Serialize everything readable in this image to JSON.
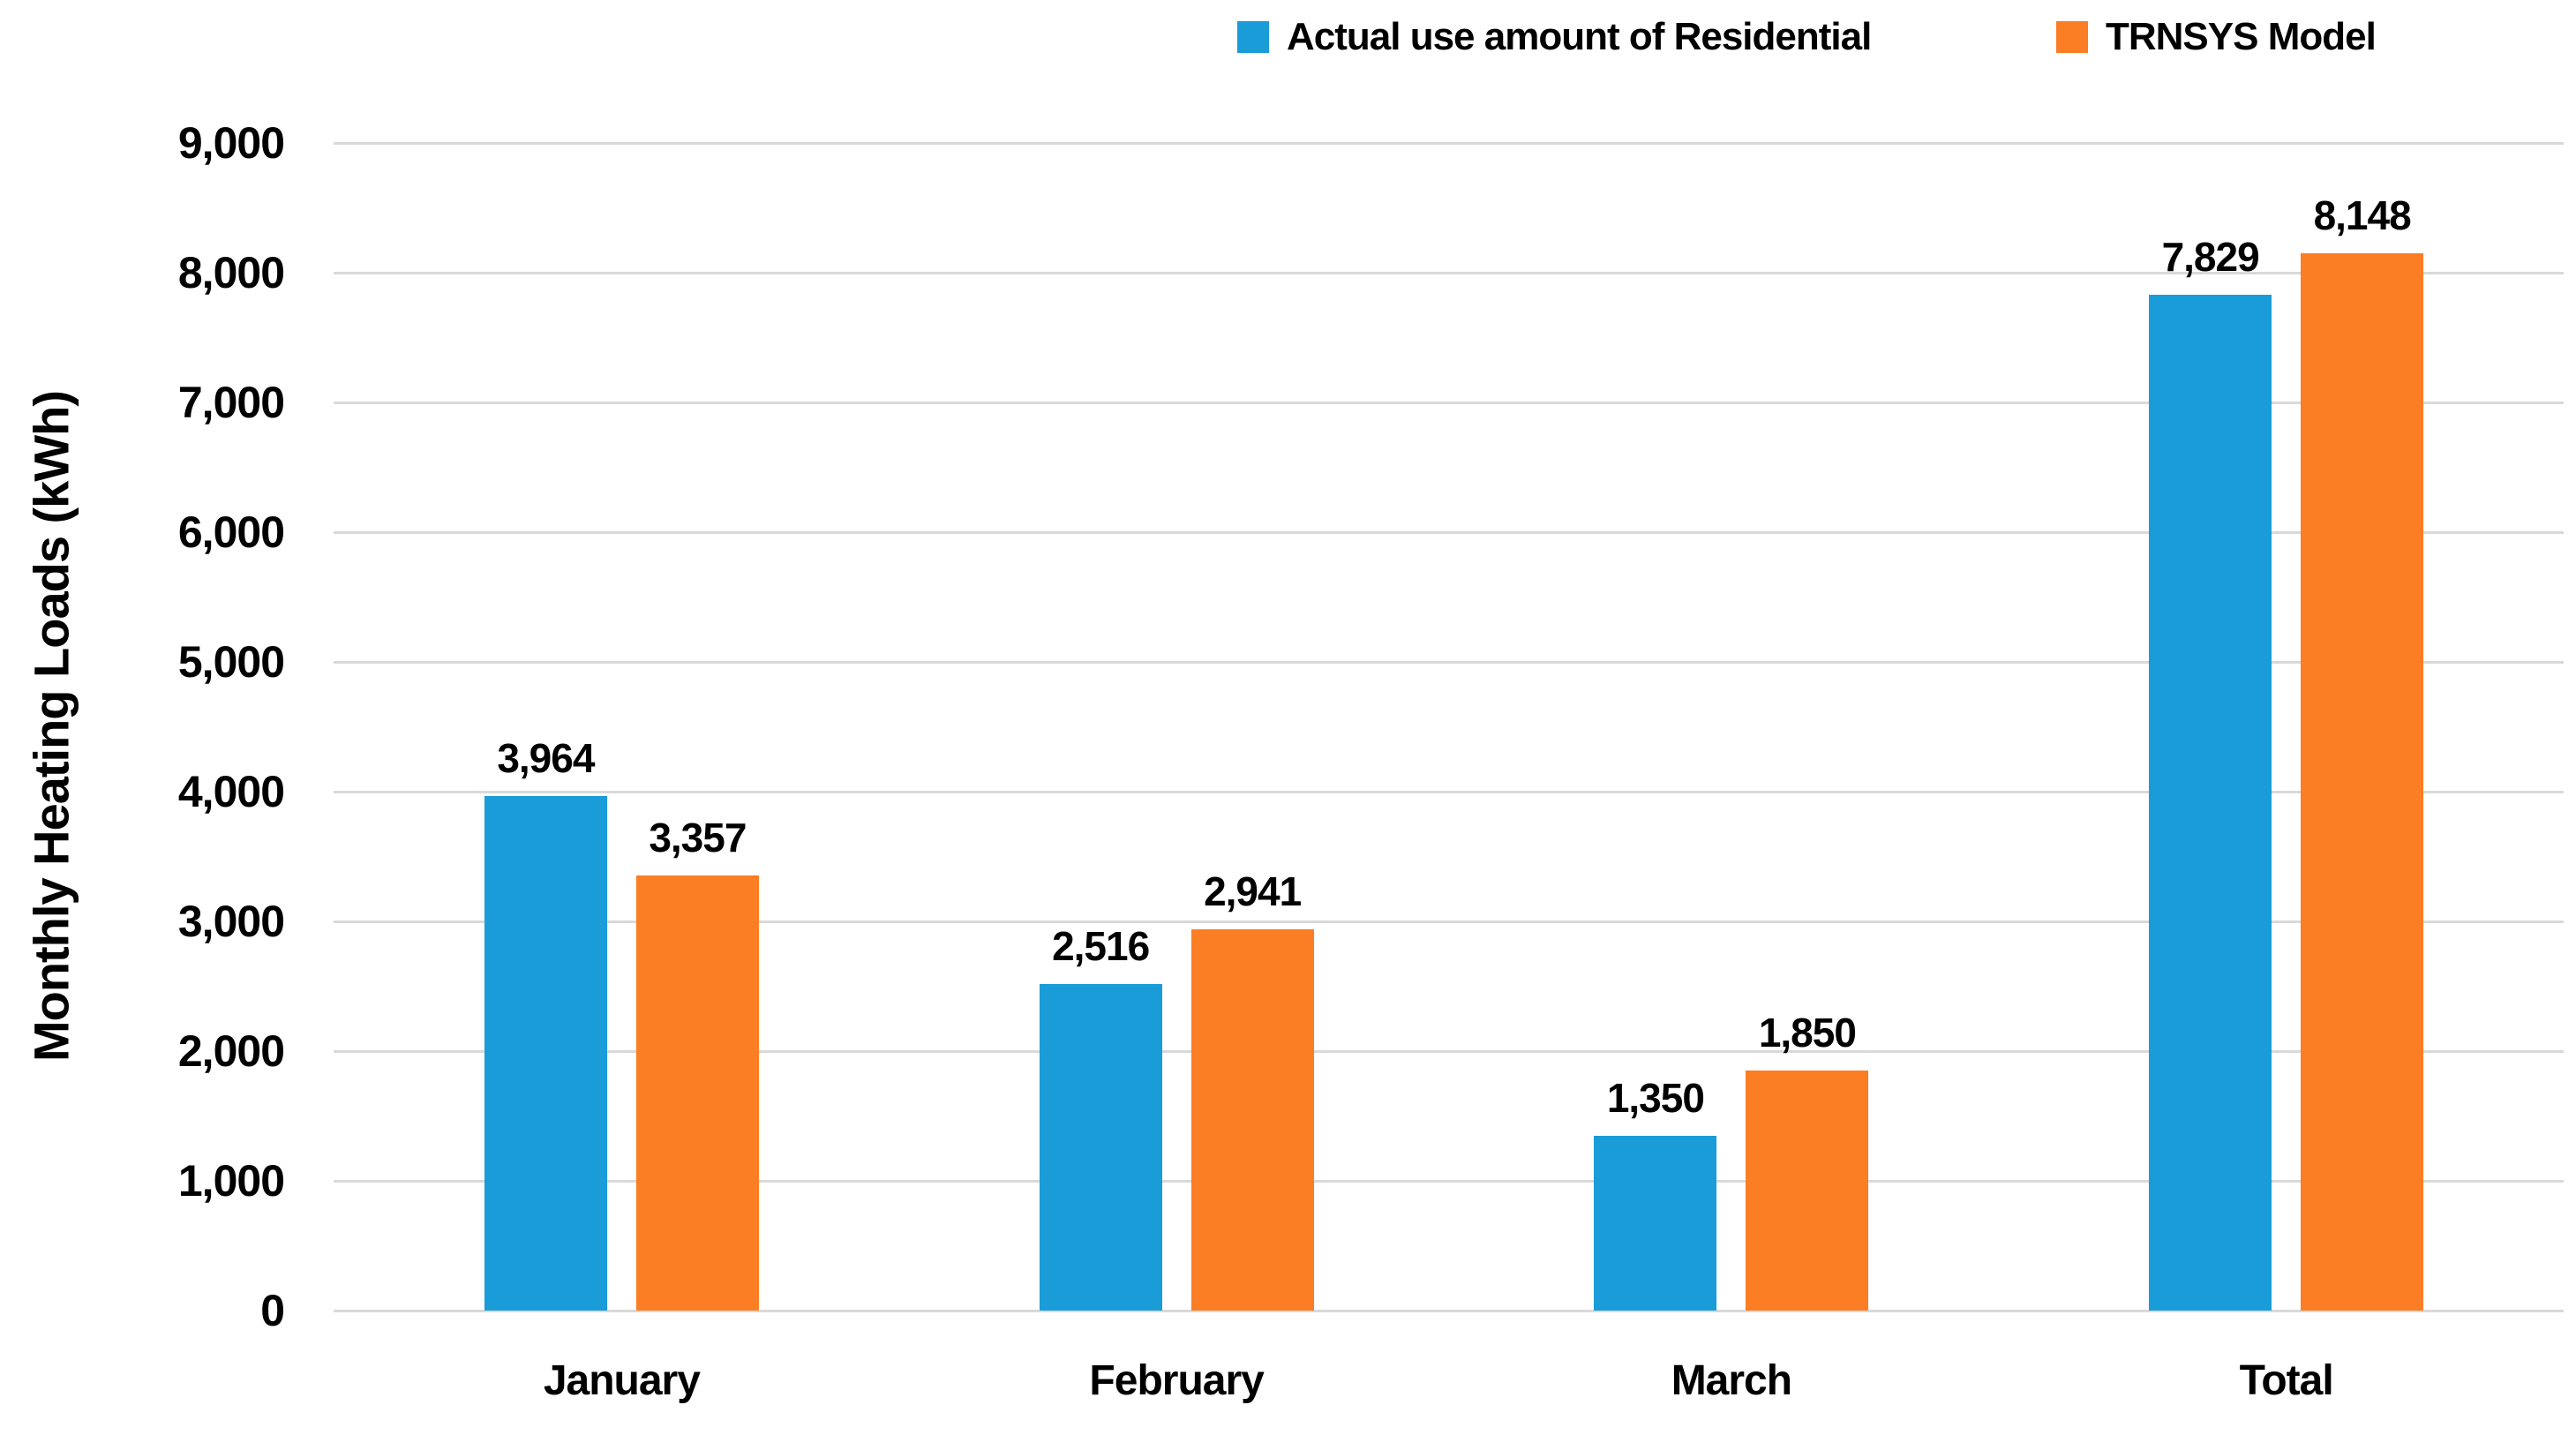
{
  "chart_data": {
    "type": "bar",
    "title": "",
    "categories": [
      "January",
      "February",
      "March",
      "Total"
    ],
    "series": [
      {
        "name": "Actual use amount of Residential",
        "color": "#199CD8",
        "values": [
          3964,
          2516,
          1350,
          7829
        ],
        "labels": [
          "3,964",
          "2,516",
          "1,350",
          "7,829"
        ]
      },
      {
        "name": "TRNSYS Model",
        "color": "#FB7D24",
        "values": [
          3357,
          2941,
          1850,
          8148
        ],
        "labels": [
          "3,357",
          "2,941",
          "1,850",
          "8,148"
        ]
      }
    ],
    "xlabel": "",
    "ylabel": "Monthly Heating Loads (kWh)",
    "ylim": [
      0,
      9000
    ],
    "ytick_step": 1000,
    "ytick_labels": [
      "0",
      "1,000",
      "2,000",
      "3,000",
      "4,000",
      "5,000",
      "6,000",
      "7,000",
      "8,000",
      "9,000"
    ],
    "grid": true,
    "legend_position": "top",
    "colors": {
      "grid": "#D9D9D9",
      "text": "#000000",
      "background": "#FFFFFF"
    }
  }
}
